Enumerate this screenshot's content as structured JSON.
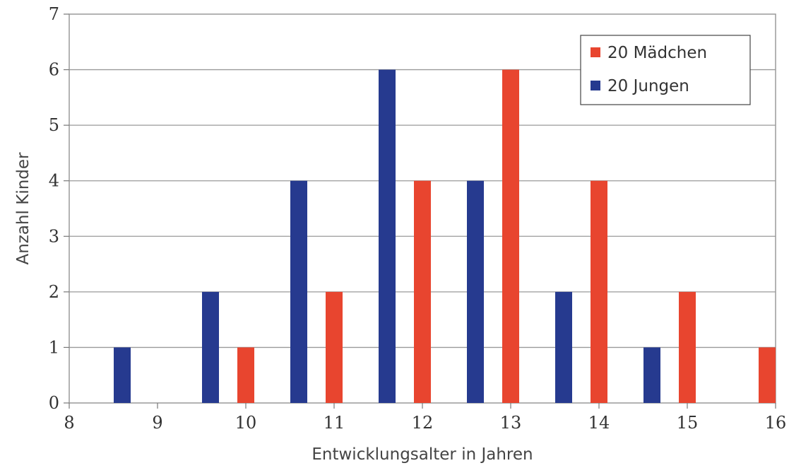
{
  "chart_data": {
    "type": "bar",
    "title": "",
    "xlabel": "Entwicklungsalter in Jahren",
    "ylabel": "Anzahl Kinder",
    "xlim": [
      8,
      16
    ],
    "ylim": [
      0,
      7
    ],
    "x_ticks": [
      "8",
      "9",
      "10",
      "11",
      "12",
      "13",
      "14",
      "15",
      "16"
    ],
    "y_ticks": [
      "0",
      "1",
      "2",
      "3",
      "4",
      "5",
      "6",
      "7"
    ],
    "grid": true,
    "legend_position": "top-right",
    "series": [
      {
        "name": "20 Mädchen",
        "color": "#e8452f",
        "points": [
          {
            "x": 10,
            "y": 1
          },
          {
            "x": 11,
            "y": 2
          },
          {
            "x": 12,
            "y": 4
          },
          {
            "x": 13,
            "y": 6
          },
          {
            "x": 14,
            "y": 4
          },
          {
            "x": 15,
            "y": 2
          },
          {
            "x": 16,
            "y": 1
          }
        ]
      },
      {
        "name": "20 Jungen",
        "color": "#263a8f",
        "points": [
          {
            "x": 8.6,
            "y": 1
          },
          {
            "x": 9.6,
            "y": 2
          },
          {
            "x": 10.6,
            "y": 4
          },
          {
            "x": 11.6,
            "y": 6
          },
          {
            "x": 12.6,
            "y": 4
          },
          {
            "x": 13.6,
            "y": 2
          },
          {
            "x": 14.6,
            "y": 1
          }
        ]
      }
    ]
  }
}
